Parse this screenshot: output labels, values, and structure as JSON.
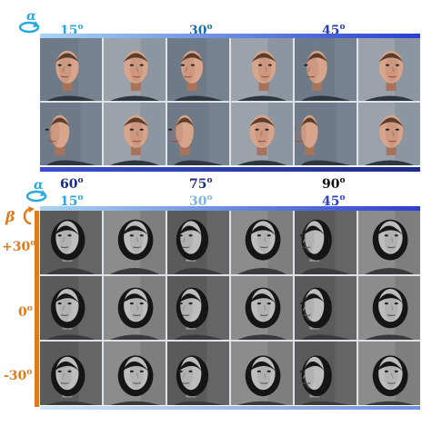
{
  "top_panel": {
    "rotation_symbol": "α",
    "angle_labels_top": [
      {
        "value": "15",
        "unit": "o",
        "color": "#29a8e0"
      },
      {
        "value": "30",
        "unit": "o",
        "color": "#1d6fa5"
      },
      {
        "value": "45",
        "unit": "o",
        "color": "#1f3fb0"
      }
    ],
    "angle_labels_bottom": [
      {
        "value": "60",
        "unit": "o",
        "color": "#1c2a8a"
      },
      {
        "value": "75",
        "unit": "o",
        "color": "#1c2a8a"
      },
      {
        "value": "90",
        "unit": "o",
        "color": "#111111"
      }
    ],
    "rows": 2,
    "cols": 6,
    "accent_start": "#a9d4f3",
    "accent_end": "#2a3fcf"
  },
  "bottom_panel": {
    "rotation_symbol_alpha": "α",
    "rotation_symbol_beta": "β",
    "angle_labels_top": [
      {
        "value": "15",
        "unit": "o",
        "color": "#29a8e0"
      },
      {
        "value": "30",
        "unit": "o",
        "color": "#7fb6e0"
      },
      {
        "value": "45",
        "unit": "o",
        "color": "#2a3fcf"
      }
    ],
    "pitch_labels": [
      {
        "value": "+30",
        "unit": "o"
      },
      {
        "value": "0",
        "unit": "o"
      },
      {
        "value": "-30",
        "unit": "o"
      }
    ],
    "rows": 3,
    "cols": 6,
    "pitch_color": "#e07a1c"
  }
}
